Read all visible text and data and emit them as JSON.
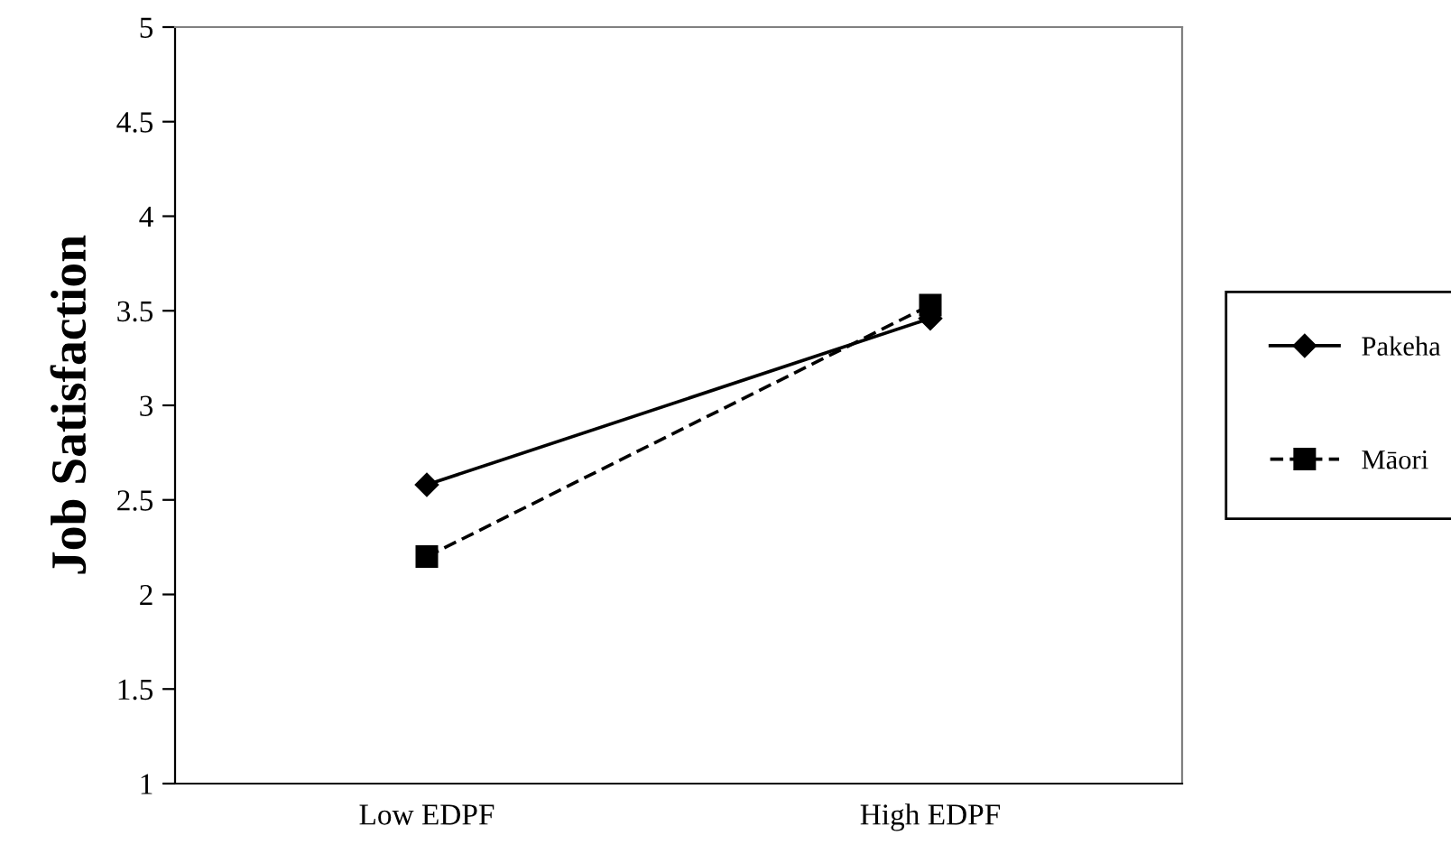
{
  "chart_data": {
    "type": "line",
    "ylabel": "Job Satisfaction",
    "categories": [
      "Low EDPF",
      "High EDPF"
    ],
    "series": [
      {
        "name": "Pakeha",
        "color": "#000000",
        "values": [
          2.58,
          3.46
        ],
        "marker": "diamond",
        "line_style": "solid"
      },
      {
        "name": "Māori",
        "color": "#000000",
        "values": [
          2.2,
          3.53
        ],
        "marker": "square",
        "line_style": "dashed"
      }
    ],
    "ylim": [
      1,
      5
    ],
    "yticks": [
      1,
      1.5,
      2,
      2.5,
      3,
      3.5,
      4,
      4.5,
      5
    ],
    "grid": false,
    "legend": "right"
  }
}
